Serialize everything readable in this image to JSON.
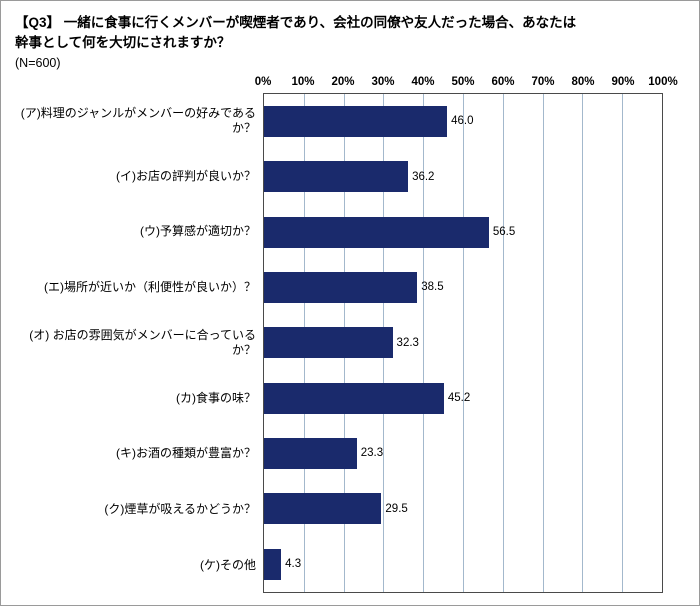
{
  "page": {
    "title_line1": "【Q3】 一緒に食事に行くメンバーが喫煙者であり、会社の同僚や友人だった場合、あなたは",
    "title_line2": "幹事として何を大切にされますか？",
    "sample_size": "(N=600)"
  },
  "chart_data": {
    "type": "bar",
    "orientation": "horizontal",
    "title": "【Q3】 一緒に食事に行くメンバーが喫煙者であり、会社の同僚や友人だった場合、あなたは幹事として何を大切にされますか？",
    "subtitle": "(N=600)",
    "categories": [
      "(ア)料理のジャンルがメンバーの好みであるか？",
      "(イ)お店の評判が良いか？",
      "(ウ)予算感が適切か？",
      "(エ)場所が近いか（利便性が良いか）？",
      "(オ) お店の雰囲気がメンバーに合っているか？",
      "(カ)食事の味？",
      "(キ)お酒の種類が豊富か？",
      "(ク)煙草が吸えるかどうか？",
      "(ケ)その他"
    ],
    "values": [
      46.0,
      36.2,
      56.5,
      38.5,
      32.3,
      45.2,
      23.3,
      29.5,
      4.3
    ],
    "value_labels": [
      "46.0",
      "36.2",
      "56.5",
      "38.5",
      "32.3",
      "45.2",
      "23.3",
      "29.5",
      "4.3"
    ],
    "x_ticks": [
      "0%",
      "10%",
      "20%",
      "30%",
      "40%",
      "50%",
      "60%",
      "70%",
      "80%",
      "90%",
      "100%"
    ],
    "xlim": [
      0,
      100
    ],
    "xlabel": "",
    "ylabel": "",
    "grid": true,
    "legend": false,
    "bar_color": "#1a2a6c",
    "gridline_color": "#a3b8cc",
    "plot_border_color": "#4a4a4a"
  }
}
